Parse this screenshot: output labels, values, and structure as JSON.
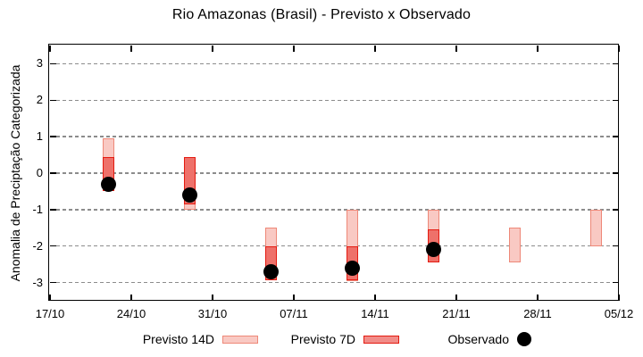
{
  "chart_data": {
    "type": "bar",
    "subtype": "forecast-range-boxes-with-observations",
    "title": "Rio Amazonas (Brasil) - Previsto x Observado",
    "ylabel": "Anomalia de Preciptação Categorizada",
    "xlabel": "",
    "ylim": [
      -3.5,
      3.5
    ],
    "yticks": [
      -3,
      -2,
      -1,
      0,
      1,
      2,
      3
    ],
    "grid": true,
    "x_axis": {
      "tick_labels": [
        "17/10",
        "24/10",
        "31/10",
        "07/11",
        "14/11",
        "21/11",
        "28/11",
        "05/12"
      ],
      "tick_day_offsets": [
        0,
        7,
        14,
        21,
        28,
        35,
        42,
        49
      ],
      "total_days": 49
    },
    "colors": {
      "previsto14_fill": "#f9c9c3",
      "previsto14_border": "#ee8878",
      "previsto7_fill": "rgba(228,26,18,0.5)",
      "previsto7_border": "#e41a10",
      "observado": "#000000",
      "grid": "#8c8c8c",
      "frame": "#000000"
    },
    "series": [
      {
        "name": "Previsto 14D",
        "kind": "box",
        "points": [
          {
            "date": "22/10",
            "day": 5,
            "low": -0.5,
            "high": 0.95
          },
          {
            "date": "29/10",
            "day": 12,
            "low": -1.0,
            "high": 0.45
          },
          {
            "date": "05/11",
            "day": 19,
            "low": -2.95,
            "high": -1.5
          },
          {
            "date": "12/11",
            "day": 26,
            "low": -2.95,
            "high": -1.0
          },
          {
            "date": "19/11",
            "day": 33,
            "low": -2.45,
            "high": -1.0
          },
          {
            "date": "26/11",
            "day": 40,
            "low": -2.45,
            "high": -1.5
          },
          {
            "date": "03/12",
            "day": 47,
            "low": -2.0,
            "high": -1.0
          }
        ]
      },
      {
        "name": "Previsto 7D",
        "kind": "box",
        "points": [
          {
            "date": "22/10",
            "day": 5,
            "low": -0.5,
            "high": 0.45
          },
          {
            "date": "29/10",
            "day": 12,
            "low": -0.85,
            "high": 0.45
          },
          {
            "date": "05/11",
            "day": 19,
            "low": -2.95,
            "high": -2.0
          },
          {
            "date": "12/11",
            "day": 26,
            "low": -2.95,
            "high": -2.0
          },
          {
            "date": "19/11",
            "day": 33,
            "low": -2.45,
            "high": -1.55
          }
        ]
      },
      {
        "name": "Observado",
        "kind": "dot",
        "points": [
          {
            "date": "22/10",
            "day": 5,
            "value": -0.3
          },
          {
            "date": "29/10",
            "day": 12,
            "value": -0.6
          },
          {
            "date": "05/11",
            "day": 19,
            "value": -2.7
          },
          {
            "date": "12/11",
            "day": 26,
            "value": -2.6
          },
          {
            "date": "19/11",
            "day": 33,
            "value": -2.1
          }
        ]
      }
    ],
    "legend": {
      "position": "bottom",
      "items": [
        {
          "label": "Previsto 14D",
          "swatch": "light-box"
        },
        {
          "label": "Previsto 7D",
          "swatch": "dark-box"
        },
        {
          "label": "Observado",
          "swatch": "black-dot"
        }
      ]
    }
  }
}
